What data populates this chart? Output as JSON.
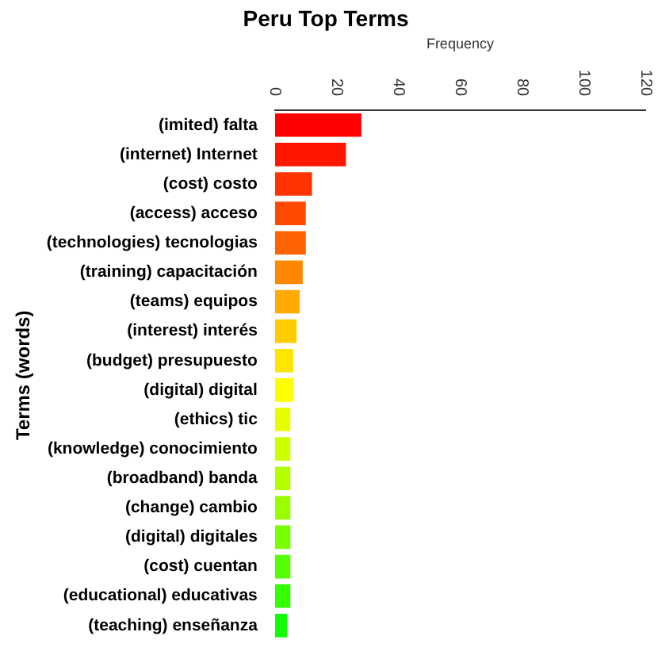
{
  "chart_data": {
    "type": "bar",
    "orientation": "horizontal",
    "title": "Peru Top Terms",
    "xlabel": "Frequency",
    "ylabel": "Terms (words)",
    "categories": [
      "(imited) falta",
      "(internet) Internet",
      "(cost) costo",
      "(access) acceso",
      "(technologies) tecnologias",
      "(training) capacitación",
      "(teams) equipos",
      "(interest) interés",
      "(budget) presupuesto",
      "(digital) digital",
      "(ethics) tic",
      "(knowledge) conocimiento",
      "(broadband) banda",
      "(change) cambio",
      "(digital) digitales",
      "(cost) cuentan",
      "(educational) educativas",
      "(teaching) enseñanza"
    ],
    "values": [
      28,
      23,
      12,
      10,
      10,
      9,
      8,
      7,
      6,
      6,
      5,
      5,
      5,
      5,
      5,
      5,
      5,
      4
    ],
    "colors": [
      "#ff0000",
      "#ff1500",
      "#ff3300",
      "#ff4a00",
      "#ff6200",
      "#ff8800",
      "#ffaa00",
      "#ffcc00",
      "#ffe600",
      "#ffff00",
      "#e6ff00",
      "#ccff00",
      "#b3ff00",
      "#99ff00",
      "#77ff00",
      "#55ff00",
      "#33ff00",
      "#11ff00"
    ],
    "xlim": [
      0,
      120
    ],
    "xticks": [
      0,
      20,
      40,
      60,
      80,
      100,
      120
    ],
    "grid": false,
    "legend": false
  }
}
